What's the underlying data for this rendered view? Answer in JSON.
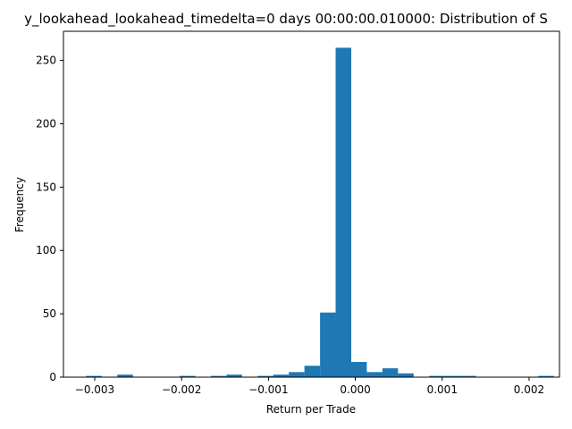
{
  "chart_data": {
    "type": "bar",
    "title": "y_lookahead_lookahead_timedelta=0 days 00:00:00.010000: Distribution of S",
    "xlabel": "Return per Trade",
    "ylabel": "Frequency",
    "xlim": [
      -0.00336,
      0.00235
    ],
    "ylim": [
      0,
      273
    ],
    "x_ticks": [
      {
        "value": -0.003,
        "label": "−0.003"
      },
      {
        "value": -0.002,
        "label": "−0.002"
      },
      {
        "value": -0.001,
        "label": "−0.001"
      },
      {
        "value": 0.0,
        "label": "0.000"
      },
      {
        "value": 0.001,
        "label": "0.001"
      },
      {
        "value": 0.002,
        "label": "0.002"
      }
    ],
    "y_ticks": [
      {
        "value": 0,
        "label": "0"
      },
      {
        "value": 50,
        "label": "50"
      },
      {
        "value": 100,
        "label": "100"
      },
      {
        "value": 150,
        "label": "150"
      },
      {
        "value": 200,
        "label": "200"
      },
      {
        "value": 250,
        "label": "250"
      }
    ],
    "bins": [
      {
        "x0": -0.003099,
        "x1": -0.002919,
        "count": 1
      },
      {
        "x0": -0.002919,
        "x1": -0.00274,
        "count": 0
      },
      {
        "x0": -0.00274,
        "x1": -0.00256,
        "count": 2
      },
      {
        "x0": -0.00256,
        "x1": -0.002381,
        "count": 0
      },
      {
        "x0": -0.002381,
        "x1": -0.002201,
        "count": 0
      },
      {
        "x0": -0.002201,
        "x1": -0.002022,
        "count": 0
      },
      {
        "x0": -0.002022,
        "x1": -0.001842,
        "count": 1
      },
      {
        "x0": -0.001842,
        "x1": -0.001663,
        "count": 0
      },
      {
        "x0": -0.001663,
        "x1": -0.001483,
        "count": 1
      },
      {
        "x0": -0.001483,
        "x1": -0.001304,
        "count": 2
      },
      {
        "x0": -0.001304,
        "x1": -0.001124,
        "count": 0
      },
      {
        "x0": -0.001124,
        "x1": -0.000945,
        "count": 1
      },
      {
        "x0": -0.000945,
        "x1": -0.000765,
        "count": 2
      },
      {
        "x0": -0.000765,
        "x1": -0.000586,
        "count": 4
      },
      {
        "x0": -0.000586,
        "x1": -0.000406,
        "count": 9
      },
      {
        "x0": -0.000406,
        "x1": -0.000227,
        "count": 51
      },
      {
        "x0": -0.000227,
        "x1": -4.7e-05,
        "count": 260
      },
      {
        "x0": -4.7e-05,
        "x1": 0.000132,
        "count": 12
      },
      {
        "x0": 0.000132,
        "x1": 0.000312,
        "count": 4
      },
      {
        "x0": 0.000312,
        "x1": 0.000491,
        "count": 7
      },
      {
        "x0": 0.000491,
        "x1": 0.000671,
        "count": 3
      },
      {
        "x0": 0.000671,
        "x1": 0.00085,
        "count": 0
      },
      {
        "x0": 0.00085,
        "x1": 0.00103,
        "count": 1
      },
      {
        "x0": 0.00103,
        "x1": 0.001209,
        "count": 1
      },
      {
        "x0": 0.001209,
        "x1": 0.001389,
        "count": 1
      },
      {
        "x0": 0.001389,
        "x1": 0.001568,
        "count": 0
      },
      {
        "x0": 0.001568,
        "x1": 0.001748,
        "count": 0
      },
      {
        "x0": 0.001748,
        "x1": 0.001927,
        "count": 0
      },
      {
        "x0": 0.001927,
        "x1": 0.002107,
        "count": 0
      },
      {
        "x0": 0.002107,
        "x1": 0.002286,
        "count": 1
      }
    ],
    "bar_color": "#1f77b4",
    "grid": false,
    "legend": "none"
  }
}
